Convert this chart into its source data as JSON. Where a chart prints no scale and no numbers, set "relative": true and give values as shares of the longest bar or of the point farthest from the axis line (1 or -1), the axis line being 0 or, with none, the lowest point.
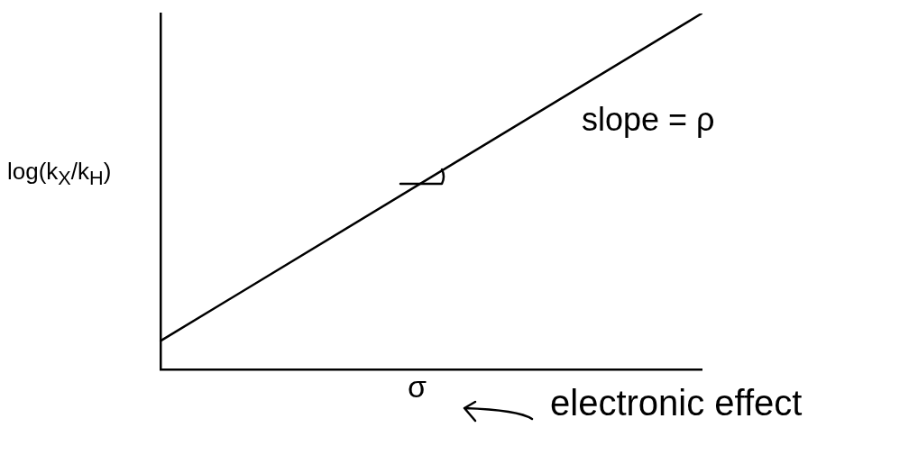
{
  "chart_data": {
    "type": "line",
    "relative": true,
    "categories": [
      null,
      null
    ],
    "series": [
      {
        "color": "#000000",
        "values": [
          0.08,
          1
        ]
      }
    ],
    "xlabel": "σ",
    "ylabel": "log(k$_{X}$/k$_{H}$)",
    "annotations": [
      "slope = ρ",
      "electronic effect"
    ],
    "grid": false,
    "legend": false,
    "marker": "none",
    "line_style": "solid"
  }
}
